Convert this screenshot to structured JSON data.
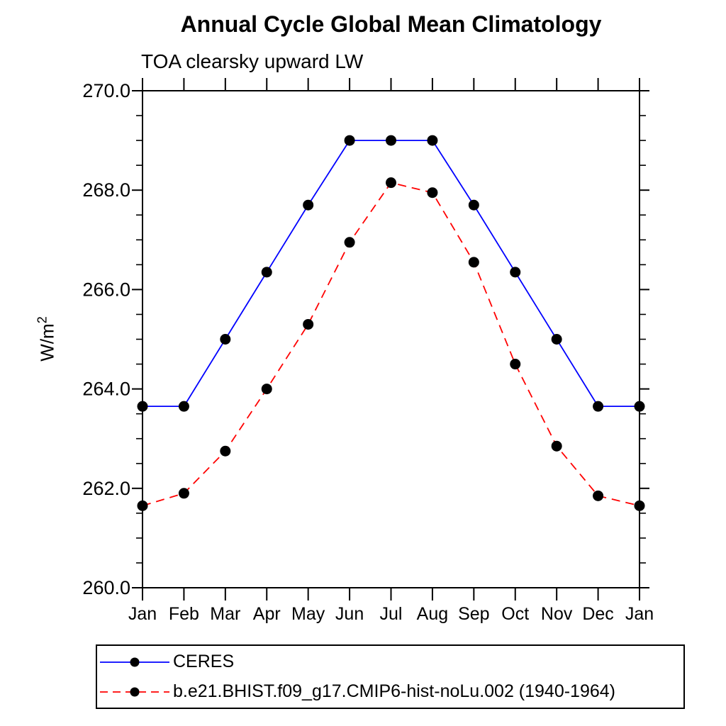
{
  "chart_data": {
    "type": "line",
    "title": "Annual Cycle Global Mean Climatology",
    "subtitle": "TOA clearsky upward LW",
    "ylabel": {
      "base": "W/m",
      "sup": "2"
    },
    "x_categories": [
      "Jan",
      "Feb",
      "Mar",
      "Apr",
      "May",
      "Jun",
      "Jul",
      "Aug",
      "Sep",
      "Oct",
      "Nov",
      "Dec",
      "Jan"
    ],
    "ylim": [
      260.0,
      270.0
    ],
    "ytick_interval": 2.0,
    "yminor_interval": 0.5,
    "ytick_labels": [
      "260.0",
      "262.0",
      "264.0",
      "266.0",
      "268.0",
      "270.0"
    ],
    "grid": "off",
    "legend_position": "bottom-left-box",
    "background_color": "#ffffff",
    "axis_color": "#000000",
    "marker": {
      "shape": "circle",
      "color": "#000000",
      "radius": 7.5
    },
    "series": [
      {
        "name": "CERES",
        "color": "#0000ff",
        "line_style": "solid",
        "values": [
          263.65,
          263.65,
          265.0,
          266.35,
          267.7,
          269.0,
          269.0,
          269.0,
          267.7,
          266.35,
          265.0,
          263.65,
          263.65
        ]
      },
      {
        "name": "b.e21.BHIST.f09_g17.CMIP6-hist-noLu.002 (1940-1964)",
        "color": "#ff0000",
        "line_style": "dashed",
        "values": [
          261.65,
          261.9,
          262.75,
          264.0,
          265.3,
          266.95,
          268.15,
          267.95,
          266.55,
          264.5,
          262.85,
          261.85,
          261.65
        ]
      }
    ]
  }
}
